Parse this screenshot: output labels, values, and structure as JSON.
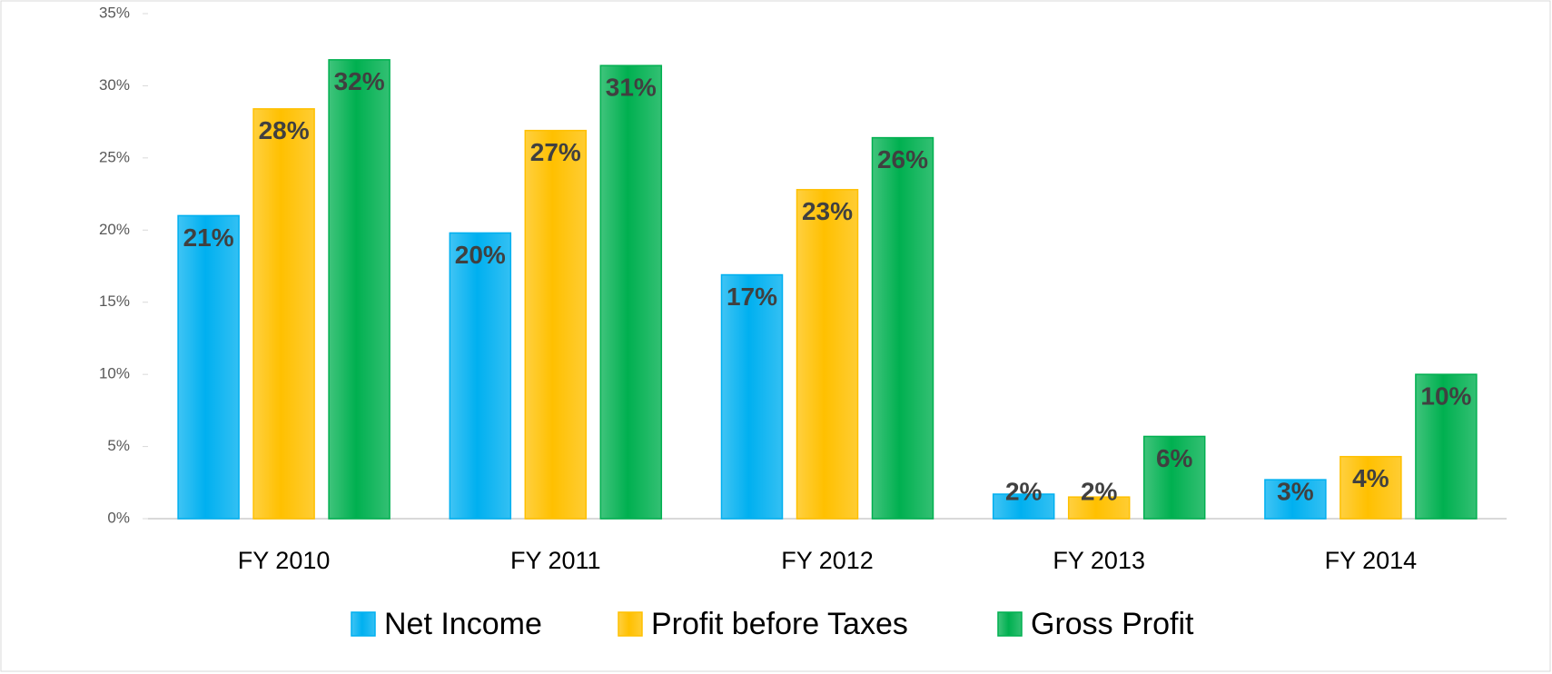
{
  "chart_data": {
    "type": "bar",
    "categories": [
      "FY 2010",
      "FY 2011",
      "FY 2012",
      "FY 2013",
      "FY 2014"
    ],
    "series": [
      {
        "name": "Net Income",
        "color": "#00b0f0",
        "values": [
          21.0,
          19.8,
          16.9,
          1.7,
          2.7
        ],
        "value_labels": [
          "21%",
          "20%",
          "17%",
          "2%",
          "3%"
        ]
      },
      {
        "name": "Profit before Taxes",
        "color": "#ffc000",
        "values": [
          28.4,
          26.9,
          22.8,
          1.5,
          4.3
        ],
        "value_labels": [
          "28%",
          "27%",
          "23%",
          "2%",
          "4%"
        ]
      },
      {
        "name": "Gross Profit",
        "color": "#00b050",
        "values": [
          31.8,
          31.4,
          26.4,
          5.7,
          10.0
        ],
        "value_labels": [
          "32%",
          "31%",
          "26%",
          "6%",
          "10%"
        ]
      }
    ],
    "ylim": [
      0,
      35
    ],
    "yticks": [
      {
        "value": 0,
        "label": "0%"
      },
      {
        "value": 5,
        "label": "5%"
      },
      {
        "value": 10,
        "label": "10%"
      },
      {
        "value": 15,
        "label": "15%"
      },
      {
        "value": 20,
        "label": "20%"
      },
      {
        "value": 25,
        "label": "25%"
      },
      {
        "value": 30,
        "label": "30%"
      },
      {
        "value": 35,
        "label": "35%"
      }
    ],
    "legend": "bottom"
  }
}
